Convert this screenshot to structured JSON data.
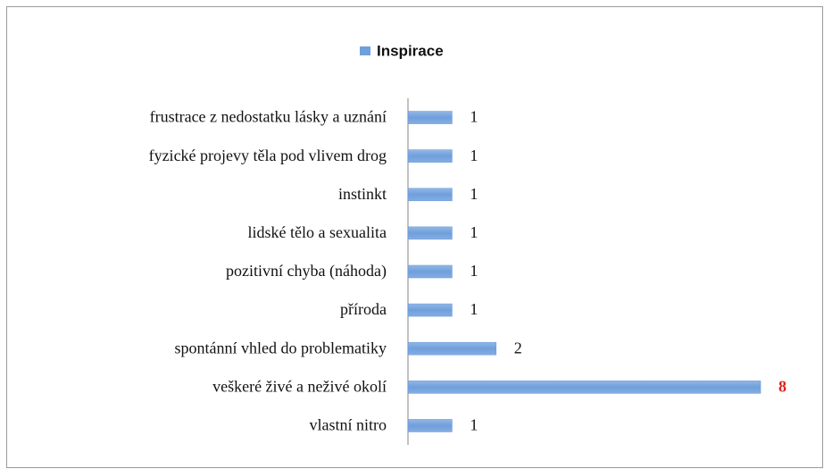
{
  "chart_data": {
    "type": "barh",
    "categories": [
      "frustrace z nedostatku lásky a uznání",
      "fyzické projevy těla pod vlivem drog",
      "instinkt",
      "lidské tělo a sexualita",
      "pozitivní chyba (náhoda)",
      "příroda",
      "spontánní vhled  do problematiky",
      "veškeré živé a neživé okolí",
      "vlastní nitro"
    ],
    "series": [
      {
        "name": "Inspirace",
        "color": "#6f9fdc",
        "values": [
          1,
          1,
          1,
          1,
          1,
          1,
          2,
          8,
          1
        ]
      }
    ],
    "label_colors": [
      "#111111",
      "#111111",
      "#111111",
      "#111111",
      "#111111",
      "#111111",
      "#111111",
      "#e0201c",
      "#111111"
    ],
    "xlim": [
      0,
      8
    ],
    "legend": "top"
  }
}
